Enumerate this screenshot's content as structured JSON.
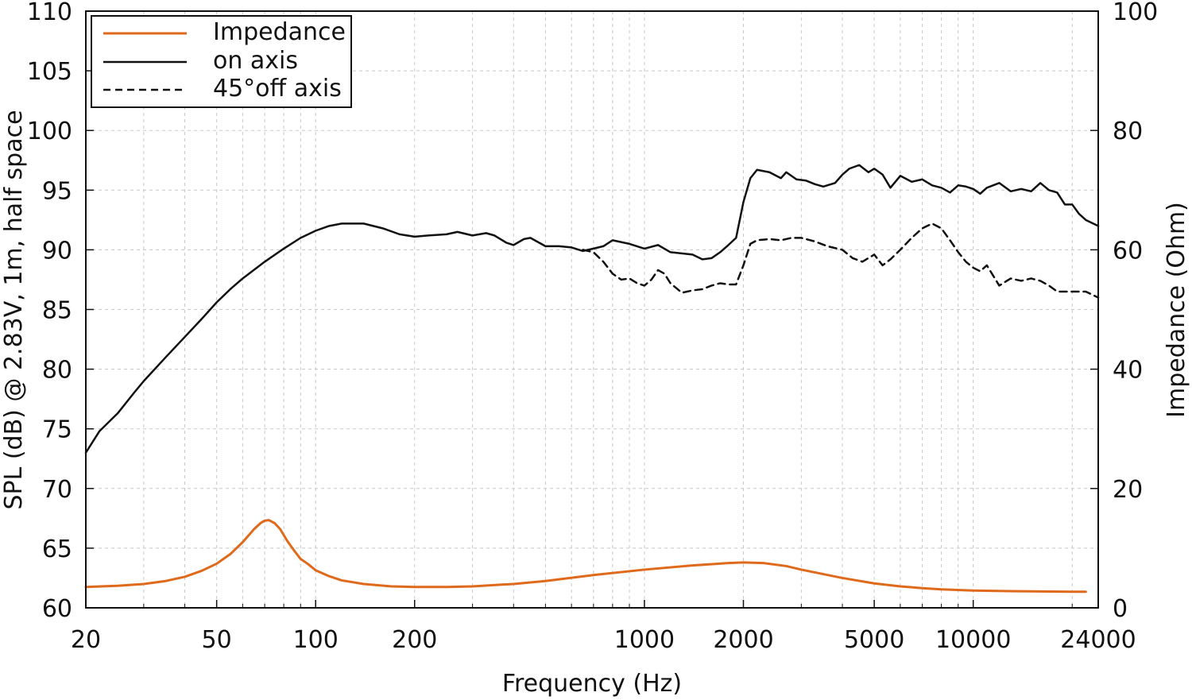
{
  "chart_data": {
    "type": "line",
    "xlabel": "Frequency (Hz)",
    "ylabel": "SPL (dB) @ 2.83V, 1m, half space",
    "ylabel_right": "Impedance (Ohm)",
    "x_scale": "log",
    "xlim": [
      20,
      24000
    ],
    "ylim": [
      60,
      110
    ],
    "ylim_right": [
      0,
      100
    ],
    "x_ticks": [
      20,
      50,
      100,
      200,
      1000,
      2000,
      5000,
      10000,
      24000
    ],
    "x_tick_labels": [
      "20",
      "50",
      "100",
      "200",
      "1000",
      "2000",
      "5000",
      "10000",
      "24000"
    ],
    "y_ticks": [
      60,
      65,
      70,
      75,
      80,
      85,
      90,
      95,
      100,
      105,
      110
    ],
    "y_tick_labels": [
      "60",
      "65",
      "70",
      "75",
      "80",
      "85",
      "90",
      "95",
      "100",
      "105",
      "110"
    ],
    "y_right_ticks": [
      0,
      20,
      40,
      60,
      80,
      100
    ],
    "y_right_tick_labels": [
      "0",
      "20",
      "40",
      "60",
      "80",
      "100"
    ],
    "x_minor_grid": [
      30,
      40,
      60,
      70,
      80,
      90,
      300,
      400,
      500,
      600,
      700,
      800,
      900,
      3000,
      4000,
      6000,
      7000,
      8000,
      9000,
      20000
    ],
    "grid": true,
    "legend_position": "top-left",
    "series": [
      {
        "name": "Impedance",
        "axis": "right",
        "color": "#e06a1c",
        "dash": "solid",
        "x": [
          20,
          25,
          30,
          35,
          40,
          45,
          50,
          55,
          60,
          65,
          68,
          70,
          72,
          75,
          78,
          82,
          86,
          90,
          95,
          100,
          110,
          120,
          140,
          170,
          200,
          250,
          300,
          400,
          500,
          700,
          1000,
          1400,
          1800,
          2000,
          2300,
          2700,
          3000,
          4000,
          5000,
          6000,
          7000,
          8000,
          10000,
          13000,
          16000,
          20000,
          22000
        ],
        "y": [
          3.5,
          3.7,
          4.0,
          4.5,
          5.2,
          6.2,
          7.4,
          9.0,
          11.0,
          13.2,
          14.2,
          14.6,
          14.7,
          14.2,
          13.2,
          11.2,
          9.6,
          8.2,
          7.3,
          6.3,
          5.3,
          4.6,
          4.0,
          3.6,
          3.5,
          3.5,
          3.6,
          4.0,
          4.5,
          5.5,
          6.4,
          7.1,
          7.5,
          7.6,
          7.5,
          7.0,
          6.4,
          5.0,
          4.1,
          3.6,
          3.3,
          3.1,
          2.9,
          2.8,
          2.75,
          2.7,
          2.7
        ]
      },
      {
        "name": "on axis",
        "axis": "left",
        "color": "#111111",
        "dash": "solid",
        "x": [
          20,
          22,
          25,
          28,
          30,
          35,
          40,
          45,
          50,
          55,
          60,
          70,
          80,
          90,
          100,
          110,
          120,
          140,
          160,
          180,
          200,
          220,
          250,
          270,
          300,
          330,
          350,
          380,
          400,
          430,
          450,
          500,
          550,
          600,
          650,
          700,
          750,
          800,
          900,
          1000,
          1100,
          1200,
          1400,
          1500,
          1600,
          1700,
          1800,
          1900,
          2000,
          2100,
          2200,
          2400,
          2600,
          2700,
          2900,
          3100,
          3300,
          3500,
          3800,
          4000,
          4200,
          4500,
          4800,
          5000,
          5300,
          5600,
          6000,
          6500,
          7000,
          7500,
          8000,
          8500,
          9000,
          9500,
          10000,
          10500,
          11000,
          12000,
          13000,
          14000,
          15000,
          16000,
          17000,
          18000,
          19000,
          20000,
          21000,
          22000,
          24000
        ],
        "y": [
          73.0,
          74.8,
          76.3,
          78.0,
          79.0,
          81.0,
          82.7,
          84.2,
          85.6,
          86.7,
          87.6,
          89.0,
          90.1,
          91.0,
          91.6,
          92.0,
          92.2,
          92.2,
          91.8,
          91.3,
          91.1,
          91.2,
          91.3,
          91.5,
          91.2,
          91.4,
          91.2,
          90.6,
          90.4,
          90.9,
          91.0,
          90.3,
          90.3,
          90.2,
          89.9,
          90.1,
          90.3,
          90.8,
          90.5,
          90.1,
          90.4,
          89.8,
          89.6,
          89.2,
          89.3,
          89.8,
          90.4,
          91.0,
          94.0,
          96.0,
          96.7,
          96.5,
          96.0,
          96.5,
          95.9,
          95.8,
          95.5,
          95.3,
          95.6,
          96.3,
          96.8,
          97.1,
          96.5,
          96.8,
          96.3,
          95.2,
          96.2,
          95.7,
          95.9,
          95.4,
          95.2,
          94.8,
          95.4,
          95.3,
          95.1,
          94.7,
          95.2,
          95.6,
          94.9,
          95.1,
          94.9,
          95.6,
          95.0,
          94.8,
          93.8,
          93.8,
          93.0,
          92.5,
          92.0
        ]
      },
      {
        "name": "45°off axis",
        "axis": "left",
        "color": "#111111",
        "dash": "dashed",
        "x": [
          650,
          700,
          750,
          800,
          850,
          900,
          950,
          1000,
          1050,
          1100,
          1150,
          1200,
          1300,
          1400,
          1500,
          1600,
          1700,
          1800,
          1900,
          2000,
          2100,
          2200,
          2400,
          2600,
          2800,
          3000,
          3300,
          3600,
          4000,
          4300,
          4600,
          5000,
          5300,
          5600,
          6000,
          6500,
          7000,
          7500,
          8000,
          8500,
          9000,
          9500,
          10000,
          10500,
          11000,
          12000,
          13000,
          14000,
          15000,
          16000,
          17000,
          18000,
          20000,
          22000,
          24000
        ],
        "y": [
          90.0,
          89.8,
          89.0,
          88.0,
          87.5,
          87.6,
          87.2,
          87.0,
          87.5,
          88.3,
          88.0,
          87.2,
          86.4,
          86.6,
          86.7,
          87.0,
          87.2,
          87.1,
          87.1,
          88.7,
          90.5,
          90.8,
          90.9,
          90.8,
          91.0,
          91.0,
          90.7,
          90.3,
          90.0,
          89.3,
          89.0,
          89.6,
          88.7,
          89.2,
          90.0,
          91.0,
          91.8,
          92.2,
          91.8,
          90.8,
          89.8,
          89.0,
          88.5,
          88.2,
          88.7,
          87.0,
          87.6,
          87.4,
          87.6,
          87.4,
          87.0,
          86.5,
          86.5,
          86.5,
          86.0
        ]
      }
    ]
  }
}
